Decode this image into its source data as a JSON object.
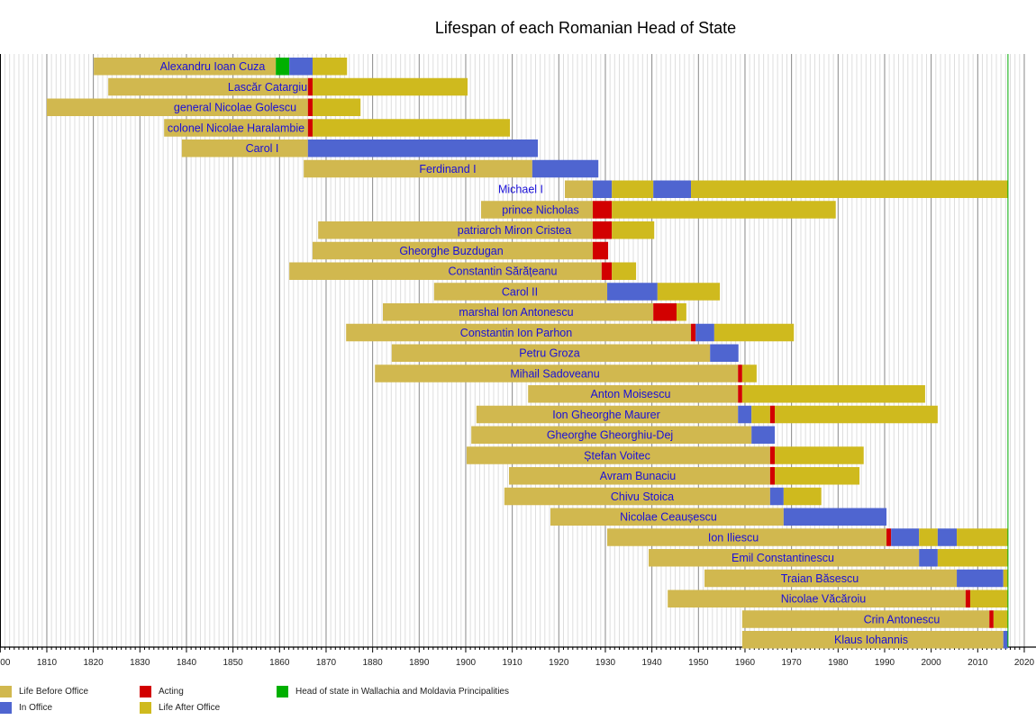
{
  "chart_data": {
    "type": "timeline",
    "title": "Lifespan of each Romanian Head of State",
    "xlim": [
      1800,
      2020
    ],
    "x_ticks": [
      "1800",
      "1810",
      "1820",
      "1830",
      "1840",
      "1850",
      "1860",
      "1870",
      "1880",
      "1890",
      "1900",
      "1910",
      "1920",
      "1930",
      "1940",
      "1950",
      "1960",
      "1970",
      "1980",
      "1990",
      "2000",
      "2010",
      "2020"
    ],
    "grid": "major every 10 years, minor every year",
    "current_year_marker": 2016.5,
    "colors": {
      "before": "#d1b84f",
      "office": "#4f65d0",
      "acting": "#d20000",
      "after": "#cfba1e",
      "principalities": "#00b000",
      "label": "#1a10d8",
      "now": "#00aa00"
    },
    "legend": [
      {
        "key": "before",
        "label": "Life Before Office"
      },
      {
        "key": "office",
        "label": "In Office"
      },
      {
        "key": "acting",
        "label": "Acting"
      },
      {
        "key": "after",
        "label": "Life After Office"
      },
      {
        "key": "principalities",
        "label": "Head of state in Wallachia and Moldavia Principalities"
      }
    ],
    "rows": [
      {
        "name": "Alexandru Ioan Cuza",
        "segments": [
          [
            "before",
            1820.1,
            1859.2
          ],
          [
            "principalities",
            1859.2,
            1862.1
          ],
          [
            "office",
            1862.1,
            1867.1
          ],
          [
            "after",
            1867.1,
            1874.5
          ]
        ]
      },
      {
        "name": "Lascăr Catargiu",
        "segments": [
          [
            "before",
            1823.2,
            1866.1
          ],
          [
            "acting",
            1866.1,
            1867.1
          ],
          [
            "after",
            1867.1,
            1900.4
          ]
        ]
      },
      {
        "name": "general Nicolae Golescu",
        "segments": [
          [
            "before",
            1810.0,
            1866.1
          ],
          [
            "acting",
            1866.1,
            1867.1
          ],
          [
            "after",
            1867.1,
            1877.4
          ]
        ]
      },
      {
        "name": "colonel Nicolae Haralambie",
        "segments": [
          [
            "before",
            1835.2,
            1866.1
          ],
          [
            "acting",
            1866.1,
            1867.1
          ],
          [
            "after",
            1867.1,
            1909.5
          ]
        ]
      },
      {
        "name": "Carol I",
        "segments": [
          [
            "before",
            1839.0,
            1866.1
          ],
          [
            "office",
            1866.1,
            1915.5
          ]
        ]
      },
      {
        "name": "Ferdinand I",
        "segments": [
          [
            "before",
            1865.2,
            1914.3
          ],
          [
            "office",
            1914.3,
            1928.5
          ]
        ]
      },
      {
        "name": "Michael I",
        "segments": [
          [
            "before",
            1921.3,
            1927.3
          ],
          [
            "office",
            1927.3,
            1931.4
          ],
          [
            "after",
            1931.4,
            1940.3
          ],
          [
            "office",
            1940.3,
            1948.4
          ],
          [
            "after",
            1948.4,
            2016.5
          ]
        ]
      },
      {
        "name": "prince Nicholas",
        "segments": [
          [
            "before",
            1903.3,
            1927.3
          ],
          [
            "acting",
            1927.3,
            1931.4
          ],
          [
            "after",
            1931.4,
            1979.5
          ]
        ]
      },
      {
        "name": "patriarch Miron Cristea",
        "segments": [
          [
            "before",
            1868.3,
            1927.3
          ],
          [
            "acting",
            1927.3,
            1931.4
          ],
          [
            "after",
            1931.4,
            1940.5
          ]
        ]
      },
      {
        "name": "Gheorghe Buzdugan",
        "segments": [
          [
            "before",
            1867.1,
            1927.3
          ],
          [
            "acting",
            1927.3,
            1930.6
          ]
        ]
      },
      {
        "name": "Constantin Sărățeanu",
        "segments": [
          [
            "before",
            1862.1,
            1929.2
          ],
          [
            "acting",
            1929.2,
            1931.4
          ],
          [
            "after",
            1931.4,
            1936.6
          ]
        ]
      },
      {
        "name": "Carol II",
        "segments": [
          [
            "before",
            1893.2,
            1930.4
          ],
          [
            "office",
            1930.4,
            1941.2
          ],
          [
            "after",
            1941.2,
            1954.6
          ]
        ]
      },
      {
        "name": "marshal Ion Antonescu",
        "segments": [
          [
            "before",
            1882.2,
            1940.3
          ],
          [
            "acting",
            1940.3,
            1945.3
          ],
          [
            "after",
            1945.3,
            1947.4
          ]
        ]
      },
      {
        "name": "Constantin Ion Parhon",
        "segments": [
          [
            "before",
            1874.3,
            1948.4
          ],
          [
            "acting",
            1948.4,
            1949.4
          ],
          [
            "office",
            1949.4,
            1953.4
          ],
          [
            "after",
            1953.4,
            1970.5
          ]
        ]
      },
      {
        "name": "Petru Groza",
        "segments": [
          [
            "before",
            1884.1,
            1952.5
          ],
          [
            "office",
            1952.5,
            1958.6
          ]
        ]
      },
      {
        "name": "Mihail Sadoveanu",
        "segments": [
          [
            "before",
            1880.5,
            1958.5
          ],
          [
            "acting",
            1958.5,
            1959.4
          ],
          [
            "after",
            1959.4,
            1962.5
          ]
        ]
      },
      {
        "name": "Anton Moisescu",
        "segments": [
          [
            "before",
            1913.4,
            1958.5
          ],
          [
            "acting",
            1958.5,
            1959.4
          ],
          [
            "after",
            1959.4,
            1998.7
          ]
        ]
      },
      {
        "name": "Ion Gheorghe Maurer",
        "segments": [
          [
            "before",
            1902.3,
            1958.5
          ],
          [
            "office",
            1958.5,
            1961.4
          ],
          [
            "after",
            1961.4,
            1965.4
          ],
          [
            "acting",
            1965.4,
            1966.4
          ],
          [
            "after",
            1966.4,
            2001.4
          ]
        ]
      },
      {
        "name": "Gheorghe Gheorghiu-Dej",
        "segments": [
          [
            "before",
            1901.2,
            1961.4
          ],
          [
            "office",
            1961.4,
            1966.4
          ]
        ]
      },
      {
        "name": "Ștefan Voitec",
        "segments": [
          [
            "before",
            1900.2,
            1965.4
          ],
          [
            "acting",
            1965.4,
            1966.4
          ],
          [
            "after",
            1966.4,
            1985.5
          ]
        ]
      },
      {
        "name": "Avram Bunaciu",
        "segments": [
          [
            "before",
            1909.3,
            1965.4
          ],
          [
            "acting",
            1965.4,
            1966.4
          ],
          [
            "after",
            1966.4,
            1984.6
          ]
        ]
      },
      {
        "name": "Chivu Stoica",
        "segments": [
          [
            "before",
            1908.3,
            1965.4
          ],
          [
            "office",
            1965.4,
            1968.3
          ],
          [
            "after",
            1968.3,
            1976.4
          ]
        ]
      },
      {
        "name": "Nicolae Ceaușescu",
        "segments": [
          [
            "before",
            1918.2,
            1968.3
          ],
          [
            "office",
            1968.3,
            1990.4
          ]
        ]
      },
      {
        "name": "Ion Iliescu",
        "segments": [
          [
            "before",
            1930.4,
            1990.4
          ],
          [
            "acting",
            1990.4,
            1991.4
          ],
          [
            "office",
            1991.4,
            1997.4
          ],
          [
            "after",
            1997.4,
            2001.4
          ],
          [
            "office",
            2001.4,
            2005.5
          ],
          [
            "after",
            2005.5,
            2016.5
          ]
        ]
      },
      {
        "name": "Emil Constantinescu",
        "segments": [
          [
            "before",
            1939.3,
            1997.4
          ],
          [
            "office",
            1997.4,
            2001.4
          ],
          [
            "after",
            2001.4,
            2016.5
          ]
        ]
      },
      {
        "name": "Traian Băsescu",
        "segments": [
          [
            "before",
            1951.3,
            2005.5
          ],
          [
            "office",
            2005.5,
            2015.5
          ],
          [
            "after",
            2015.5,
            2016.5
          ]
        ]
      },
      {
        "name": "Nicolae Văcăroiu",
        "segments": [
          [
            "before",
            1943.4,
            2007.4
          ],
          [
            "acting",
            2007.4,
            2008.4
          ],
          [
            "after",
            2008.4,
            2016.5
          ]
        ]
      },
      {
        "name": "Crin Antonescu",
        "segments": [
          [
            "before",
            1959.4,
            2012.5
          ],
          [
            "acting",
            2012.5,
            2013.4
          ],
          [
            "after",
            2013.4,
            2016.5
          ]
        ]
      },
      {
        "name": "Klaus Iohannis",
        "segments": [
          [
            "before",
            1959.4,
            2015.5
          ],
          [
            "office",
            2015.5,
            2016.5
          ]
        ]
      }
    ]
  }
}
